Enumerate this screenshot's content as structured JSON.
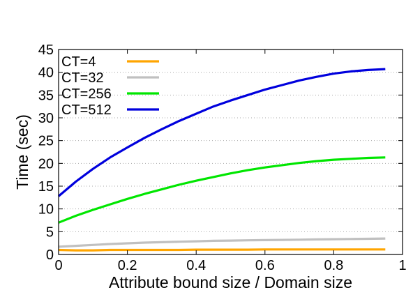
{
  "chart_data": {
    "type": "line",
    "title": "",
    "xlabel": "Attribute bound size / Domain size",
    "ylabel": "Time (sec)",
    "xlim": [
      0,
      1
    ],
    "ylim": [
      0,
      45
    ],
    "x_ticks": [
      0,
      0.2,
      0.4,
      0.6,
      0.8,
      1
    ],
    "x_tick_labels": [
      "0",
      "0.2",
      "0.4",
      "0.6",
      "0.8",
      "1"
    ],
    "y_ticks": [
      0,
      5,
      10,
      15,
      20,
      25,
      30,
      35,
      40,
      45
    ],
    "y_tick_labels": [
      "0",
      "5",
      "10",
      "15",
      "20",
      "25",
      "30",
      "35",
      "40",
      "45"
    ],
    "grid": "horizontal dotted",
    "legend_position": "top-left",
    "x": [
      0,
      0.05,
      0.1,
      0.15,
      0.2,
      0.25,
      0.3,
      0.35,
      0.4,
      0.45,
      0.5,
      0.55,
      0.6,
      0.65,
      0.7,
      0.75,
      0.8,
      0.85,
      0.9,
      0.95
    ],
    "series": [
      {
        "name": "CT=4",
        "color": "#ffa500",
        "values": [
          1.0,
          0.9,
          0.9,
          1.0,
          1.0,
          1.0,
          1.0,
          1.0,
          1.05,
          1.05,
          1.05,
          1.05,
          1.1,
          1.1,
          1.1,
          1.1,
          1.1,
          1.1,
          1.1,
          1.1
        ]
      },
      {
        "name": "CT=32",
        "color": "#c0c0c0",
        "values": [
          1.7,
          1.9,
          2.1,
          2.3,
          2.45,
          2.6,
          2.7,
          2.8,
          2.9,
          3.0,
          3.05,
          3.1,
          3.15,
          3.2,
          3.25,
          3.3,
          3.35,
          3.4,
          3.45,
          3.5
        ]
      },
      {
        "name": "CT=256",
        "color": "#00e600",
        "values": [
          7.0,
          8.5,
          9.8,
          11.0,
          12.2,
          13.3,
          14.3,
          15.3,
          16.2,
          17.0,
          17.8,
          18.5,
          19.1,
          19.6,
          20.1,
          20.5,
          20.8,
          21.0,
          21.2,
          21.3
        ]
      },
      {
        "name": "CT=512",
        "color": "#0000dd",
        "values": [
          12.8,
          16.0,
          18.8,
          21.3,
          23.5,
          25.6,
          27.5,
          29.3,
          30.9,
          32.5,
          33.8,
          35.0,
          36.2,
          37.2,
          38.2,
          39.0,
          39.7,
          40.2,
          40.5,
          40.7
        ]
      }
    ]
  }
}
